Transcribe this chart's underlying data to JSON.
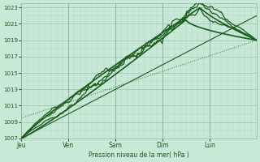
{
  "bg_color": "#c8e8d8",
  "grid_color_major": "#90b8a0",
  "grid_color_minor": "#b0d0c0",
  "line_color": "#1a5c1a",
  "dot_line_color": "#2a7a2a",
  "ylabel_text": "Pression niveau de la mer( hPa )",
  "x_labels": [
    "Jeu",
    "Ven",
    "Sam",
    "Dim",
    "Lun"
  ],
  "ylim": [
    1007,
    1023.5
  ],
  "yticks": [
    1007,
    1009,
    1011,
    1013,
    1015,
    1017,
    1019,
    1021,
    1023
  ],
  "day_ticks": [
    0,
    1,
    2,
    3,
    4
  ],
  "figsize": [
    3.2,
    2.0
  ],
  "dpi": 100
}
